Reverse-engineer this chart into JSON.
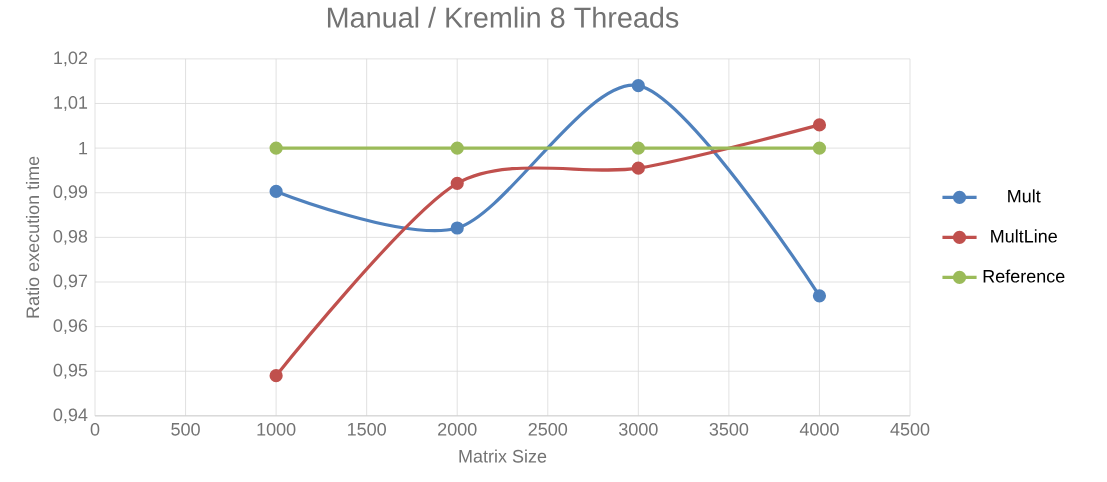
{
  "chart_data": {
    "type": "line",
    "title": "Manual / Kremlin  8 Threads",
    "xlabel": "Matrix Size",
    "ylabel": "Ratio execution time",
    "x": [
      1000,
      2000,
      3000,
      4000
    ],
    "series": [
      {
        "name": "Mult",
        "color": "#4f81bd",
        "values": [
          0.9903,
          0.9821,
          1.014,
          0.9669
        ]
      },
      {
        "name": "MultLine",
        "color": "#c0504d",
        "values": [
          0.949,
          0.9921,
          0.9955,
          1.0052
        ]
      },
      {
        "name": "Reference",
        "color": "#9bbb59",
        "values": [
          1,
          1,
          1,
          1
        ]
      }
    ],
    "xlim": [
      0,
      4500
    ],
    "xticks": [
      0,
      500,
      1000,
      1500,
      2000,
      2500,
      3000,
      3500,
      4000,
      4500
    ],
    "ylim": [
      0.94,
      1.02
    ],
    "yticks": [
      {
        "value": 0.94,
        "label": "0,94"
      },
      {
        "value": 0.95,
        "label": "0,95"
      },
      {
        "value": 0.96,
        "label": "0,96"
      },
      {
        "value": 0.97,
        "label": "0,97"
      },
      {
        "value": 0.98,
        "label": "0,98"
      },
      {
        "value": 0.99,
        "label": "0,99"
      },
      {
        "value": 1,
        "label": "1"
      },
      {
        "value": 1.01,
        "label": "1,01"
      },
      {
        "value": 1.02,
        "label": "1,02"
      }
    ],
    "grid": true,
    "legend": "right",
    "marker": "circle",
    "line_style": "solid"
  }
}
